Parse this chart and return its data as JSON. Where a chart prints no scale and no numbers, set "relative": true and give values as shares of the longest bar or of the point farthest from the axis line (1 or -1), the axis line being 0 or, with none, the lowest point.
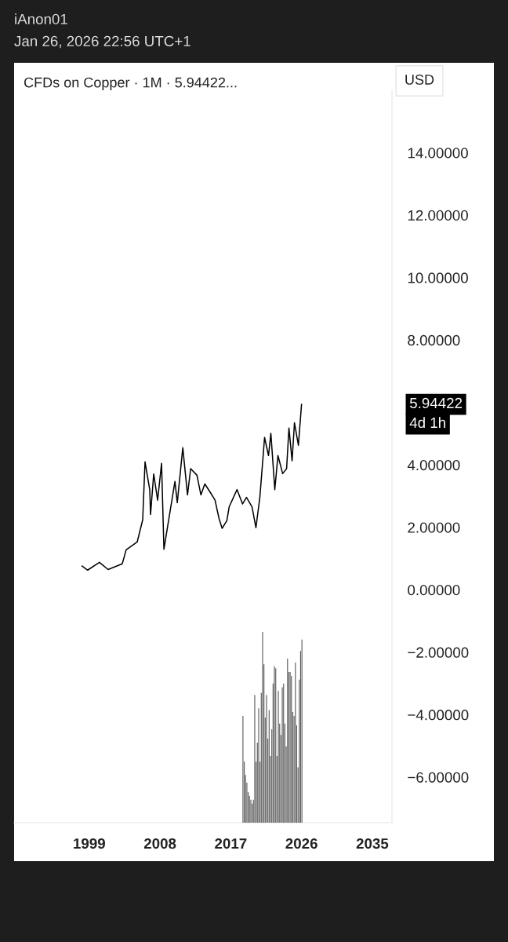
{
  "chart_data": [
    {
      "type": "line",
      "title": "CFDs on Copper · 1M · 5.94422...",
      "subtitle": "iAnon01",
      "annotations": [
        "Jan 26, 2026 22:56 UTC+1",
        "USD",
        "5.94422",
        "4d 1h"
      ],
      "series": [
        {
          "color": "#000000",
          "x": [
            1998.1,
            1998.8,
            2000.3,
            2001.4,
            2003.2,
            2003.7,
            2005.1,
            2005.8,
            2006.1,
            2006.7,
            2006.8,
            2007.2,
            2007.7,
            2008.2,
            2008.5,
            2009.9,
            2010.2,
            2010.9,
            2011.5,
            2011.9,
            2012.7,
            2013.2,
            2013.7,
            2014.4,
            2015.0,
            2015.5,
            2015.9,
            2016.5,
            2016.8,
            2017.8,
            2018.5,
            2019.0,
            2019.7,
            2020.2,
            2020.7,
            2021.3,
            2021.8,
            2022.1,
            2022.6,
            2023.0,
            2023.6,
            2024.1,
            2024.4,
            2024.8,
            2025.1,
            2025.6,
            2026.0
          ],
          "values": [
            0.76,
            0.63,
            0.88,
            0.65,
            0.83,
            1.28,
            1.53,
            2.24,
            4.1,
            3.2,
            2.41,
            3.71,
            2.87,
            4.05,
            1.3,
            3.47,
            2.79,
            4.55,
            3.04,
            3.88,
            3.67,
            3.04,
            3.39,
            3.12,
            2.87,
            2.29,
            1.97,
            2.21,
            2.66,
            3.21,
            2.75,
            2.96,
            2.66,
            1.99,
            2.96,
            4.88,
            4.3,
            5.01,
            3.21,
            4.3,
            3.72,
            3.88,
            5.18,
            4.13,
            5.35,
            4.63,
            5.94
          ]
        }
      ],
      "xlim": [
        1989.45,
        2037.5
      ],
      "xticks": [
        1999,
        2008,
        2017,
        2026,
        2035
      ],
      "ylim": [
        -7.46,
        16.0
      ],
      "yticks": [
        {
          "value": -6,
          "label": "−6.00000"
        },
        {
          "value": -4,
          "label": "−4.00000"
        },
        {
          "value": -2,
          "label": "−2.00000"
        },
        {
          "value": 0,
          "label": "0.00000"
        },
        {
          "value": 2,
          "label": "2.00000"
        },
        {
          "value": 4,
          "label": "4.00000"
        },
        {
          "value": 8,
          "label": "8.00000"
        },
        {
          "value": 10,
          "label": "10.00000"
        },
        {
          "value": 12,
          "label": "12.00000"
        },
        {
          "value": 14,
          "label": "14.00000"
        }
      ],
      "grid": false,
      "legend": false
    },
    {
      "type": "bar",
      "relative": true,
      "xlim": [
        1989.45,
        2037.5
      ],
      "series": [
        {
          "color": "#555555",
          "x": [
            2018.55,
            2018.72,
            2018.88,
            2019.05,
            2019.22,
            2019.38,
            2019.55,
            2019.72,
            2019.88,
            2020.05,
            2020.22,
            2020.38,
            2020.55,
            2020.72,
            2020.88,
            2021.05,
            2021.22,
            2021.38,
            2021.55,
            2021.72,
            2021.88,
            2022.05,
            2022.22,
            2022.38,
            2022.55,
            2022.72,
            2022.88,
            2023.05,
            2023.22,
            2023.38,
            2023.55,
            2023.72,
            2023.88,
            2024.05,
            2024.22,
            2024.38,
            2024.55,
            2024.72,
            2024.88,
            2025.05,
            2025.22,
            2025.38,
            2025.55,
            2025.72,
            2025.88,
            2026.05
          ],
          "values": [
            0.56,
            0.32,
            0.25,
            0.21,
            0.16,
            0.14,
            0.12,
            0.1,
            0.12,
            0.67,
            0.32,
            0.42,
            0.6,
            0.32,
            0.68,
            1.0,
            0.83,
            0.55,
            0.67,
            0.44,
            0.59,
            0.35,
            0.49,
            0.73,
            0.82,
            0.81,
            0.35,
            0.69,
            0.52,
            0.46,
            0.71,
            0.73,
            0.52,
            0.4,
            0.86,
            0.79,
            0.79,
            0.77,
            0.58,
            0.56,
            0.84,
            0.51,
            0.29,
            0.75,
            0.9,
            0.96
          ]
        }
      ]
    }
  ]
}
